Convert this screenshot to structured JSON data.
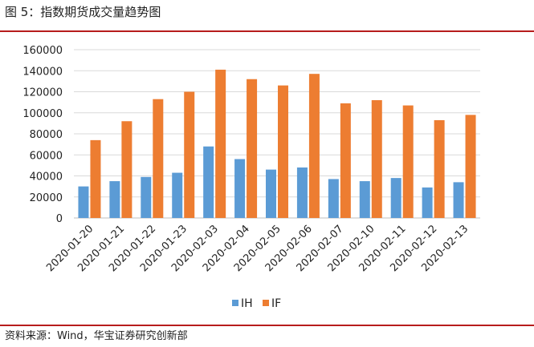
{
  "figure": {
    "title": "图 5：指数期货成交量趋势图",
    "source": "资料来源：Wind，华宝证券研究创新部"
  },
  "chart_data": {
    "type": "bar",
    "title": "",
    "xlabel": "",
    "ylabel": "",
    "ylim": [
      0,
      160000
    ],
    "yticks": [
      0,
      20000,
      40000,
      60000,
      80000,
      100000,
      120000,
      140000,
      160000
    ],
    "grid": true,
    "legend_position": "bottom",
    "categories": [
      "2020-01-20",
      "2020-01-21",
      "2020-01-22",
      "2020-01-23",
      "2020-02-03",
      "2020-02-04",
      "2020-02-05",
      "2020-02-06",
      "2020-02-07",
      "2020-02-10",
      "2020-02-11",
      "2020-02-12",
      "2020-02-13"
    ],
    "series": [
      {
        "name": "IH",
        "color": "#5b9bd5",
        "values": [
          30000,
          35000,
          39000,
          43000,
          68000,
          56000,
          46000,
          48000,
          37000,
          35000,
          38000,
          29000,
          34000
        ]
      },
      {
        "name": "IF",
        "color": "#ed7d31",
        "values": [
          74000,
          92000,
          113000,
          120000,
          141000,
          132000,
          126000,
          137000,
          109000,
          112000,
          107000,
          93000,
          98000
        ]
      }
    ]
  }
}
